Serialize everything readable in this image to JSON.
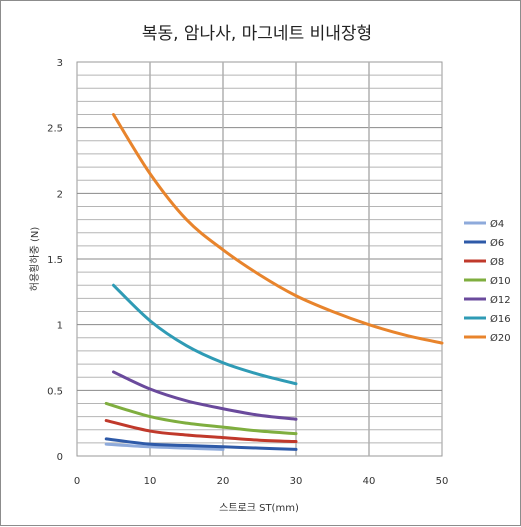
{
  "chart_data": {
    "type": "line",
    "title": "복동, 암나사, 마그네트 비내장형",
    "xlabel": "스트로크 ST(mm)",
    "ylabel": "허용횡하중 (N)",
    "xlim": [
      0,
      50
    ],
    "ylim": [
      0,
      3
    ],
    "xticks": [
      "0",
      "10",
      "20",
      "30",
      "40",
      "50"
    ],
    "yticks": [
      "0",
      "0.5",
      "1",
      "1.5",
      "2",
      "2.5",
      "3"
    ],
    "grid": true,
    "legend_position": "right",
    "series": [
      {
        "name": "Ø4",
        "color": "#8eaadb",
        "x": [
          4,
          10,
          15,
          20
        ],
        "y": [
          0.09,
          0.07,
          0.06,
          0.05
        ]
      },
      {
        "name": "Ø6",
        "color": "#2e5aa8",
        "x": [
          4,
          10,
          15,
          20,
          25,
          30
        ],
        "y": [
          0.13,
          0.09,
          0.08,
          0.07,
          0.06,
          0.05
        ]
      },
      {
        "name": "Ø8",
        "color": "#c0392b",
        "x": [
          4,
          10,
          15,
          20,
          25,
          30
        ],
        "y": [
          0.27,
          0.19,
          0.16,
          0.14,
          0.12,
          0.11
        ]
      },
      {
        "name": "Ø10",
        "color": "#7fae3f",
        "x": [
          4,
          10,
          15,
          20,
          25,
          30
        ],
        "y": [
          0.4,
          0.3,
          0.25,
          0.22,
          0.19,
          0.17
        ]
      },
      {
        "name": "Ø12",
        "color": "#6a4a9c",
        "x": [
          5,
          10,
          15,
          20,
          25,
          30
        ],
        "y": [
          0.64,
          0.51,
          0.42,
          0.36,
          0.31,
          0.28
        ]
      },
      {
        "name": "Ø16",
        "color": "#2f9bb5",
        "x": [
          5,
          10,
          15,
          20,
          25,
          30
        ],
        "y": [
          1.3,
          1.03,
          0.84,
          0.71,
          0.62,
          0.55
        ]
      },
      {
        "name": "Ø20",
        "color": "#e8842c",
        "x": [
          5,
          10,
          15,
          20,
          25,
          30,
          35,
          40,
          45,
          50
        ],
        "y": [
          2.6,
          2.15,
          1.8,
          1.57,
          1.38,
          1.22,
          1.1,
          1.0,
          0.92,
          0.86
        ]
      }
    ]
  }
}
